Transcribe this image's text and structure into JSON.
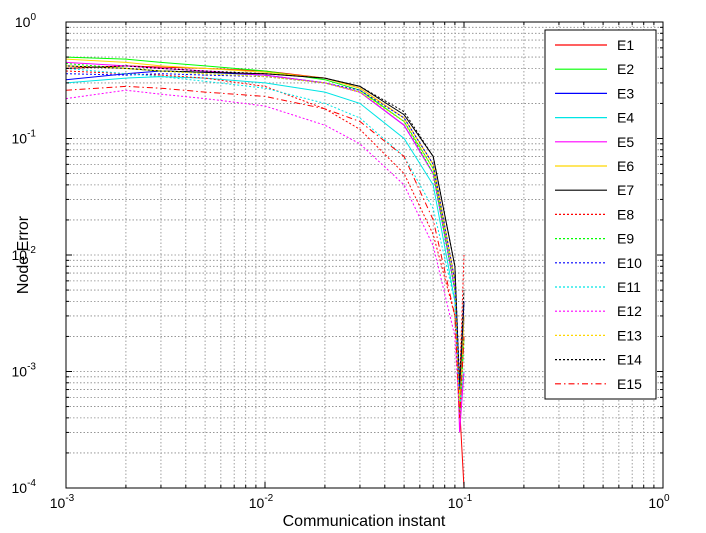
{
  "chart_data": {
    "type": "line",
    "title": "",
    "xlabel": "Communication instant",
    "ylabel": "Node Error",
    "x_scale": "log",
    "y_scale": "log",
    "xlim": [
      0.001,
      1
    ],
    "ylim": [
      0.0001,
      1
    ],
    "x_ticks": [
      {
        "base": "10",
        "exp": "-3"
      },
      {
        "base": "10",
        "exp": "-2"
      },
      {
        "base": "10",
        "exp": "-1"
      },
      {
        "base": "10",
        "exp": "0"
      }
    ],
    "y_ticks": [
      {
        "base": "10",
        "exp": "-4"
      },
      {
        "base": "10",
        "exp": "-3"
      },
      {
        "base": "10",
        "exp": "-2"
      },
      {
        "base": "10",
        "exp": "-1"
      },
      {
        "base": "10",
        "exp": "0"
      }
    ],
    "grid": true,
    "minor_grid": true,
    "legend_position": "top-right",
    "x": [
      0.001,
      0.002,
      0.003,
      0.005,
      0.01,
      0.02,
      0.03,
      0.05,
      0.07,
      0.09,
      0.095,
      0.1
    ],
    "series": [
      {
        "name": "E1",
        "color": "#ff0000",
        "dash": "solid",
        "values": [
          0.4,
          0.42,
          0.41,
          0.4,
          0.38,
          0.33,
          0.27,
          0.15,
          0.06,
          0.006,
          0.0005,
          0.0001
        ]
      },
      {
        "name": "E2",
        "color": "#00ff00",
        "dash": "solid",
        "values": [
          0.5,
          0.48,
          0.45,
          0.42,
          0.38,
          0.32,
          0.26,
          0.14,
          0.055,
          0.005,
          0.0004,
          0.002
        ]
      },
      {
        "name": "E3",
        "color": "#0000ff",
        "dash": "solid",
        "values": [
          0.32,
          0.36,
          0.38,
          0.37,
          0.35,
          0.3,
          0.25,
          0.13,
          0.05,
          0.005,
          0.0006,
          0.003
        ]
      },
      {
        "name": "E4",
        "color": "#00e5e5",
        "dash": "solid",
        "values": [
          0.3,
          0.33,
          0.34,
          0.33,
          0.3,
          0.25,
          0.2,
          0.1,
          0.04,
          0.004,
          0.0005,
          0.002
        ]
      },
      {
        "name": "E5",
        "color": "#ff00ff",
        "dash": "solid",
        "values": [
          0.45,
          0.42,
          0.4,
          0.38,
          0.35,
          0.3,
          0.25,
          0.13,
          0.05,
          0.005,
          0.0003,
          0.001
        ]
      },
      {
        "name": "E6",
        "color": "#ffd700",
        "dash": "solid",
        "values": [
          0.48,
          0.45,
          0.42,
          0.4,
          0.37,
          0.33,
          0.27,
          0.15,
          0.06,
          0.006,
          0.0006,
          0.003
        ]
      },
      {
        "name": "E7",
        "color": "#000000",
        "dash": "solid",
        "values": [
          0.42,
          0.4,
          0.38,
          0.37,
          0.36,
          0.33,
          0.28,
          0.16,
          0.07,
          0.008,
          0.0007,
          0.004
        ]
      },
      {
        "name": "E8",
        "color": "#ff0000",
        "dash": "dotted",
        "values": [
          0.38,
          0.36,
          0.35,
          0.33,
          0.28,
          0.18,
          0.12,
          0.05,
          0.015,
          0.003,
          0.0008,
          0.01
        ]
      },
      {
        "name": "E9",
        "color": "#00ff00",
        "dash": "dotted",
        "values": [
          0.44,
          0.4,
          0.38,
          0.36,
          0.34,
          0.3,
          0.25,
          0.14,
          0.05,
          0.005,
          0.0004,
          0.002
        ]
      },
      {
        "name": "E10",
        "color": "#0000ff",
        "dash": "dotted",
        "values": [
          0.36,
          0.35,
          0.36,
          0.35,
          0.34,
          0.3,
          0.26,
          0.15,
          0.06,
          0.006,
          0.0007,
          0.004
        ]
      },
      {
        "name": "E11",
        "color": "#00e5e5",
        "dash": "dotted",
        "values": [
          0.4,
          0.36,
          0.34,
          0.31,
          0.27,
          0.2,
          0.15,
          0.07,
          0.025,
          0.004,
          0.0005,
          0.001
        ]
      },
      {
        "name": "E12",
        "color": "#ff00ff",
        "dash": "dotted",
        "values": [
          0.22,
          0.26,
          0.24,
          0.22,
          0.19,
          0.13,
          0.09,
          0.04,
          0.012,
          0.002,
          0.0004,
          0.001
        ]
      },
      {
        "name": "E13",
        "color": "#ffd700",
        "dash": "dotted",
        "values": [
          0.42,
          0.4,
          0.38,
          0.36,
          0.34,
          0.3,
          0.25,
          0.14,
          0.055,
          0.006,
          0.0005,
          0.002
        ]
      },
      {
        "name": "E14",
        "color": "#000000",
        "dash": "dotted",
        "values": [
          0.4,
          0.42,
          0.4,
          0.38,
          0.36,
          0.33,
          0.28,
          0.17,
          0.07,
          0.008,
          0.0008,
          0.005
        ]
      },
      {
        "name": "E15",
        "color": "#ff0000",
        "dash": "dashdot",
        "values": [
          0.26,
          0.28,
          0.27,
          0.25,
          0.23,
          0.18,
          0.14,
          0.07,
          0.02,
          0.003,
          0.0004,
          0.002
        ]
      }
    ]
  }
}
